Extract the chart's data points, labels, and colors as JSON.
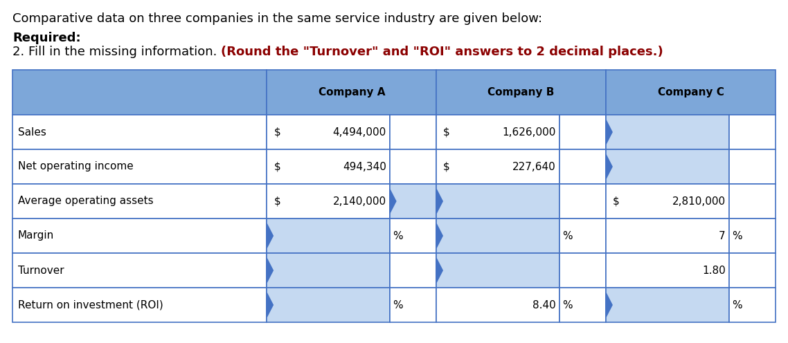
{
  "title_text": "Comparative data on three companies in the same service industry are given below:",
  "required_label": "Required:",
  "instruction_normal": "2. Fill in the missing information. ",
  "instruction_bold_red": "(Round the \"Turnover\" and \"ROI\" answers to 2 decimal places.)",
  "header_bg": "#7da7d9",
  "border_color": "#4472c4",
  "input_bg": "#c5d9f1",
  "row_labels": [
    "Sales",
    "Net operating income",
    "Average operating assets",
    "Margin",
    "Turnover",
    "Return on investment (ROI)"
  ],
  "col_headers": [
    "Company A",
    "Company B",
    "Company C"
  ],
  "bg_color": "#ffffff",
  "text_color": "#000000",
  "title_fontsize": 13,
  "table_fontsize": 11
}
